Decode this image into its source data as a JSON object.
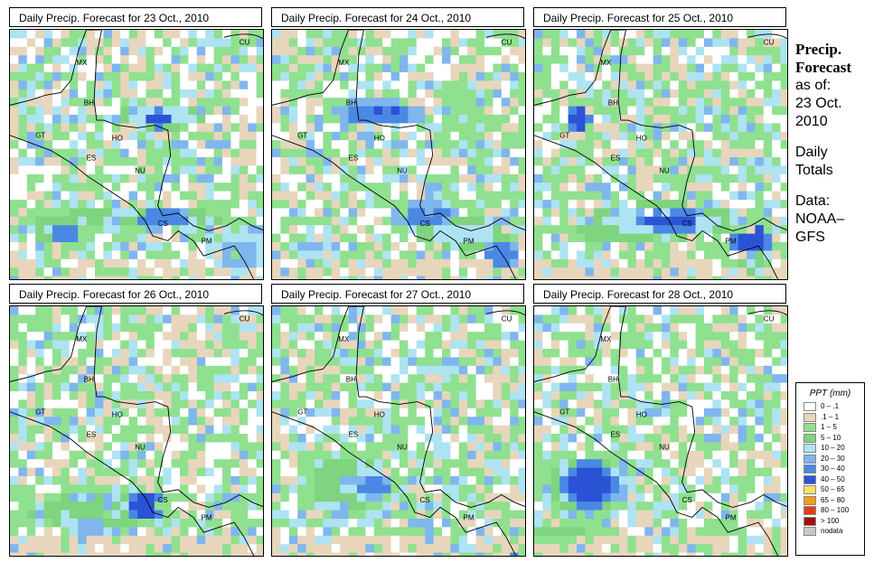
{
  "title_prefix": "Daily Precip. Forecast for",
  "panels": [
    {
      "date": "23 Oct., 2010",
      "blobs": [
        [
          0.58,
          0.34,
          0.18,
          0.05,
          4
        ],
        [
          0.58,
          0.35,
          0.05,
          0.04,
          7
        ],
        [
          0.5,
          0.74,
          0.45,
          0.05,
          3
        ],
        [
          0.22,
          0.8,
          0.06,
          0.04,
          6
        ],
        [
          0.6,
          0.74,
          0.12,
          0.04,
          6
        ],
        [
          0.9,
          0.88,
          0.1,
          0.08,
          5
        ],
        [
          0.15,
          0.78,
          0.15,
          0.06,
          3
        ]
      ]
    },
    {
      "date": "24 Oct., 2010",
      "blobs": [
        [
          0.42,
          0.33,
          0.18,
          0.05,
          6
        ],
        [
          0.45,
          0.32,
          0.08,
          0.03,
          7
        ],
        [
          0.6,
          0.72,
          0.12,
          0.05,
          6
        ],
        [
          0.75,
          0.8,
          0.18,
          0.06,
          4
        ],
        [
          0.9,
          0.88,
          0.08,
          0.06,
          6
        ],
        [
          0.15,
          0.86,
          0.08,
          0.03,
          5
        ],
        [
          0.75,
          0.35,
          0.12,
          0.2,
          2
        ]
      ]
    },
    {
      "date": "25 Oct., 2010",
      "blobs": [
        [
          0.17,
          0.35,
          0.05,
          0.05,
          7
        ],
        [
          0.5,
          0.75,
          0.3,
          0.07,
          4
        ],
        [
          0.55,
          0.75,
          0.14,
          0.04,
          7
        ],
        [
          0.85,
          0.82,
          0.08,
          0.06,
          7
        ],
        [
          0.3,
          0.78,
          0.2,
          0.06,
          3
        ],
        [
          0.85,
          0.9,
          0.05,
          0.05,
          4
        ]
      ]
    },
    {
      "date": "26 Oct., 2010",
      "blobs": [
        [
          0.53,
          0.78,
          0.08,
          0.06,
          7
        ],
        [
          0.35,
          0.8,
          0.28,
          0.1,
          3
        ],
        [
          0.32,
          0.86,
          0.1,
          0.04,
          5
        ],
        [
          0.2,
          0.82,
          0.2,
          0.06,
          3
        ]
      ]
    },
    {
      "date": "27 Oct., 2010",
      "blobs": [
        [
          0.3,
          0.7,
          0.2,
          0.14,
          3
        ],
        [
          0.4,
          0.71,
          0.07,
          0.05,
          6
        ],
        [
          0.3,
          0.69,
          0.05,
          0.04,
          5
        ],
        [
          0.25,
          0.82,
          0.06,
          0.04,
          5
        ],
        [
          0.95,
          0.97,
          0.03,
          0.02,
          6
        ]
      ]
    },
    {
      "date": "28 Oct., 2010",
      "blobs": [
        [
          0.2,
          0.7,
          0.2,
          0.15,
          3
        ],
        [
          0.22,
          0.7,
          0.11,
          0.1,
          7
        ],
        [
          0.32,
          0.72,
          0.07,
          0.06,
          5
        ],
        [
          0.1,
          0.88,
          0.15,
          0.04,
          3
        ]
      ]
    }
  ],
  "country_labels": [
    "CU",
    "MX",
    "BH",
    "GT",
    "HO",
    "ES",
    "NU",
    "CS",
    "PM"
  ],
  "side_text": {
    "title_line1": "Precip.",
    "title_line2": "Forecast",
    "asof": "as of:",
    "date_line1": "23 Oct.",
    "date_line2": "2010",
    "totals_line1": "Daily",
    "totals_line2": "Totals",
    "data_line1": "Data:",
    "data_line2": "NOAA–",
    "data_line3": "GFS"
  },
  "legend": {
    "title": "PPT (mm)",
    "items": [
      {
        "label": "0 – .1",
        "color": "#ffffff"
      },
      {
        "label": ".1 – 1",
        "color": "#e8d6bc"
      },
      {
        "label": "1 – 5",
        "color": "#8fe08f"
      },
      {
        "label": "5 – 10",
        "color": "#7fd47f"
      },
      {
        "label": "10 – 20",
        "color": "#aee3f2"
      },
      {
        "label": "20 – 30",
        "color": "#7fb6ee"
      },
      {
        "label": "30 – 40",
        "color": "#4a88e4"
      },
      {
        "label": "40 – 50",
        "color": "#2b53d6"
      },
      {
        "label": "50 – 65",
        "color": "#ffe066"
      },
      {
        "label": "65 – 80",
        "color": "#ff9a1a"
      },
      {
        "label": "80 – 100",
        "color": "#e04010"
      },
      {
        "label": "> 100",
        "color": "#a01010"
      },
      {
        "label": "nodata",
        "color": "#c8c8c8"
      }
    ]
  }
}
